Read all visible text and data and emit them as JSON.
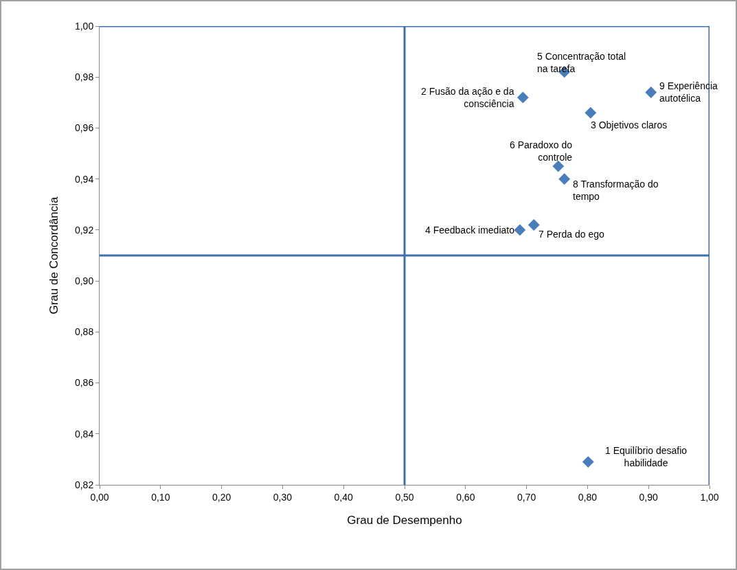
{
  "chart_data": {
    "type": "scatter",
    "xlabel": "Grau de Desempenho",
    "ylabel": "Grau de Concordância",
    "x": [
      0.762,
      0.694,
      0.904,
      0.805,
      0.752,
      0.762,
      0.712,
      0.689,
      0.801
    ],
    "values": [
      0.982,
      0.972,
      0.974,
      0.966,
      0.945,
      0.94,
      0.922,
      0.92,
      0.829
    ],
    "color": "#4a7ebb",
    "marker": "diamond",
    "xlim": [
      0,
      1
    ],
    "xticks": [
      {
        "value": 0,
        "label": "0,00"
      },
      {
        "value": 0.1,
        "label": "0,10"
      },
      {
        "value": 0.2,
        "label": "0,20"
      },
      {
        "value": 0.3,
        "label": "0,30"
      },
      {
        "value": 0.4,
        "label": "0,40"
      },
      {
        "value": 0.5,
        "label": "0,50"
      },
      {
        "value": 0.6,
        "label": "0,60"
      },
      {
        "value": 0.7,
        "label": "0,70"
      },
      {
        "value": 0.8,
        "label": "0,80"
      },
      {
        "value": 0.9,
        "label": "0,90"
      },
      {
        "value": 1,
        "label": "1,00"
      }
    ],
    "ylim": [
      0.82,
      1
    ],
    "yticks": [
      {
        "value": 0.82,
        "label": "0,82"
      },
      {
        "value": 0.84,
        "label": "0,84"
      },
      {
        "value": 0.86,
        "label": "0,86"
      },
      {
        "value": 0.88,
        "label": "0,88"
      },
      {
        "value": 0.9,
        "label": "0,90"
      },
      {
        "value": 0.92,
        "label": "0,92"
      },
      {
        "value": 0.94,
        "label": "0,94"
      },
      {
        "value": 0.96,
        "label": "0,96"
      },
      {
        "value": 0.98,
        "label": "0,98"
      },
      {
        "value": 1,
        "label": "1,00"
      }
    ],
    "grid": false,
    "ref_lines": [
      {
        "axis": "x",
        "value": 0.5,
        "color": "#3f6fb0"
      },
      {
        "axis": "y",
        "value": 0.91,
        "color": "#3f6fb0"
      },
      {
        "axis": "x",
        "value": 1,
        "color": "#3f6fb0"
      },
      {
        "axis": "y",
        "value": 1,
        "color": "#3f6fb0"
      }
    ],
    "annotations": [
      {
        "text": "5 Concentração total\nna tarefa",
        "x": 0.762,
        "y": 0.982
      },
      {
        "text": "2 Fusão da ação e da\nconsciência",
        "x": 0.694,
        "y": 0.972
      },
      {
        "text": "9 Experiência\nautotélica",
        "x": 0.904,
        "y": 0.974
      },
      {
        "text": "3 Objetivos claros",
        "x": 0.805,
        "y": 0.966
      },
      {
        "text": "6 Paradoxo do\ncontrole",
        "x": 0.752,
        "y": 0.945
      },
      {
        "text": "8 Transformação do\ntempo",
        "x": 0.762,
        "y": 0.94
      },
      {
        "text": "7 Perda do ego",
        "x": 0.712,
        "y": 0.922
      },
      {
        "text": "4 Feedback imediato",
        "x": 0.689,
        "y": 0.92
      },
      {
        "text": "1 Equilíbrio desafio\nhabilidade",
        "x": 0.801,
        "y": 0.829
      }
    ]
  }
}
